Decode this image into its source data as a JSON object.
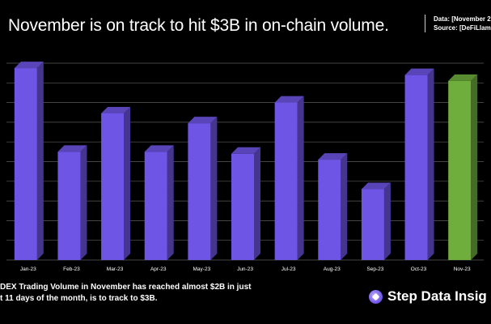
{
  "header": {
    "title": "November is on track to hit $3B in on-chain volume.",
    "data_line": "Data: [November 2",
    "source_line": "Source: [DeFiLlam"
  },
  "chart_data": {
    "type": "bar",
    "categories": [
      "Jan-23",
      "Feb-23",
      "Mar-23",
      "Apr-23",
      "May-23",
      "Jun-23",
      "Jul-23",
      "Aug-23",
      "Sep-23",
      "Oct-23",
      "Nov-23"
    ],
    "values": [
      1.95,
      1.1,
      1.49,
      1.1,
      1.39,
      1.08,
      1.6,
      1.02,
      0.72,
      1.88,
      1.82
    ],
    "ylim": [
      0,
      2.0
    ],
    "grid": true,
    "colors": {
      "default": "#6f55e6",
      "highlight": "#6fae3c",
      "highlight_category": "Nov-23"
    }
  },
  "caption": {
    "line1": "DEX Trading Volume in November has reached almost $2B in just",
    "line2": "t 11 days of the month, is to track to $3B."
  },
  "brand": {
    "name": "Step Data Insig",
    "logo_icon": "step-logo-icon"
  }
}
